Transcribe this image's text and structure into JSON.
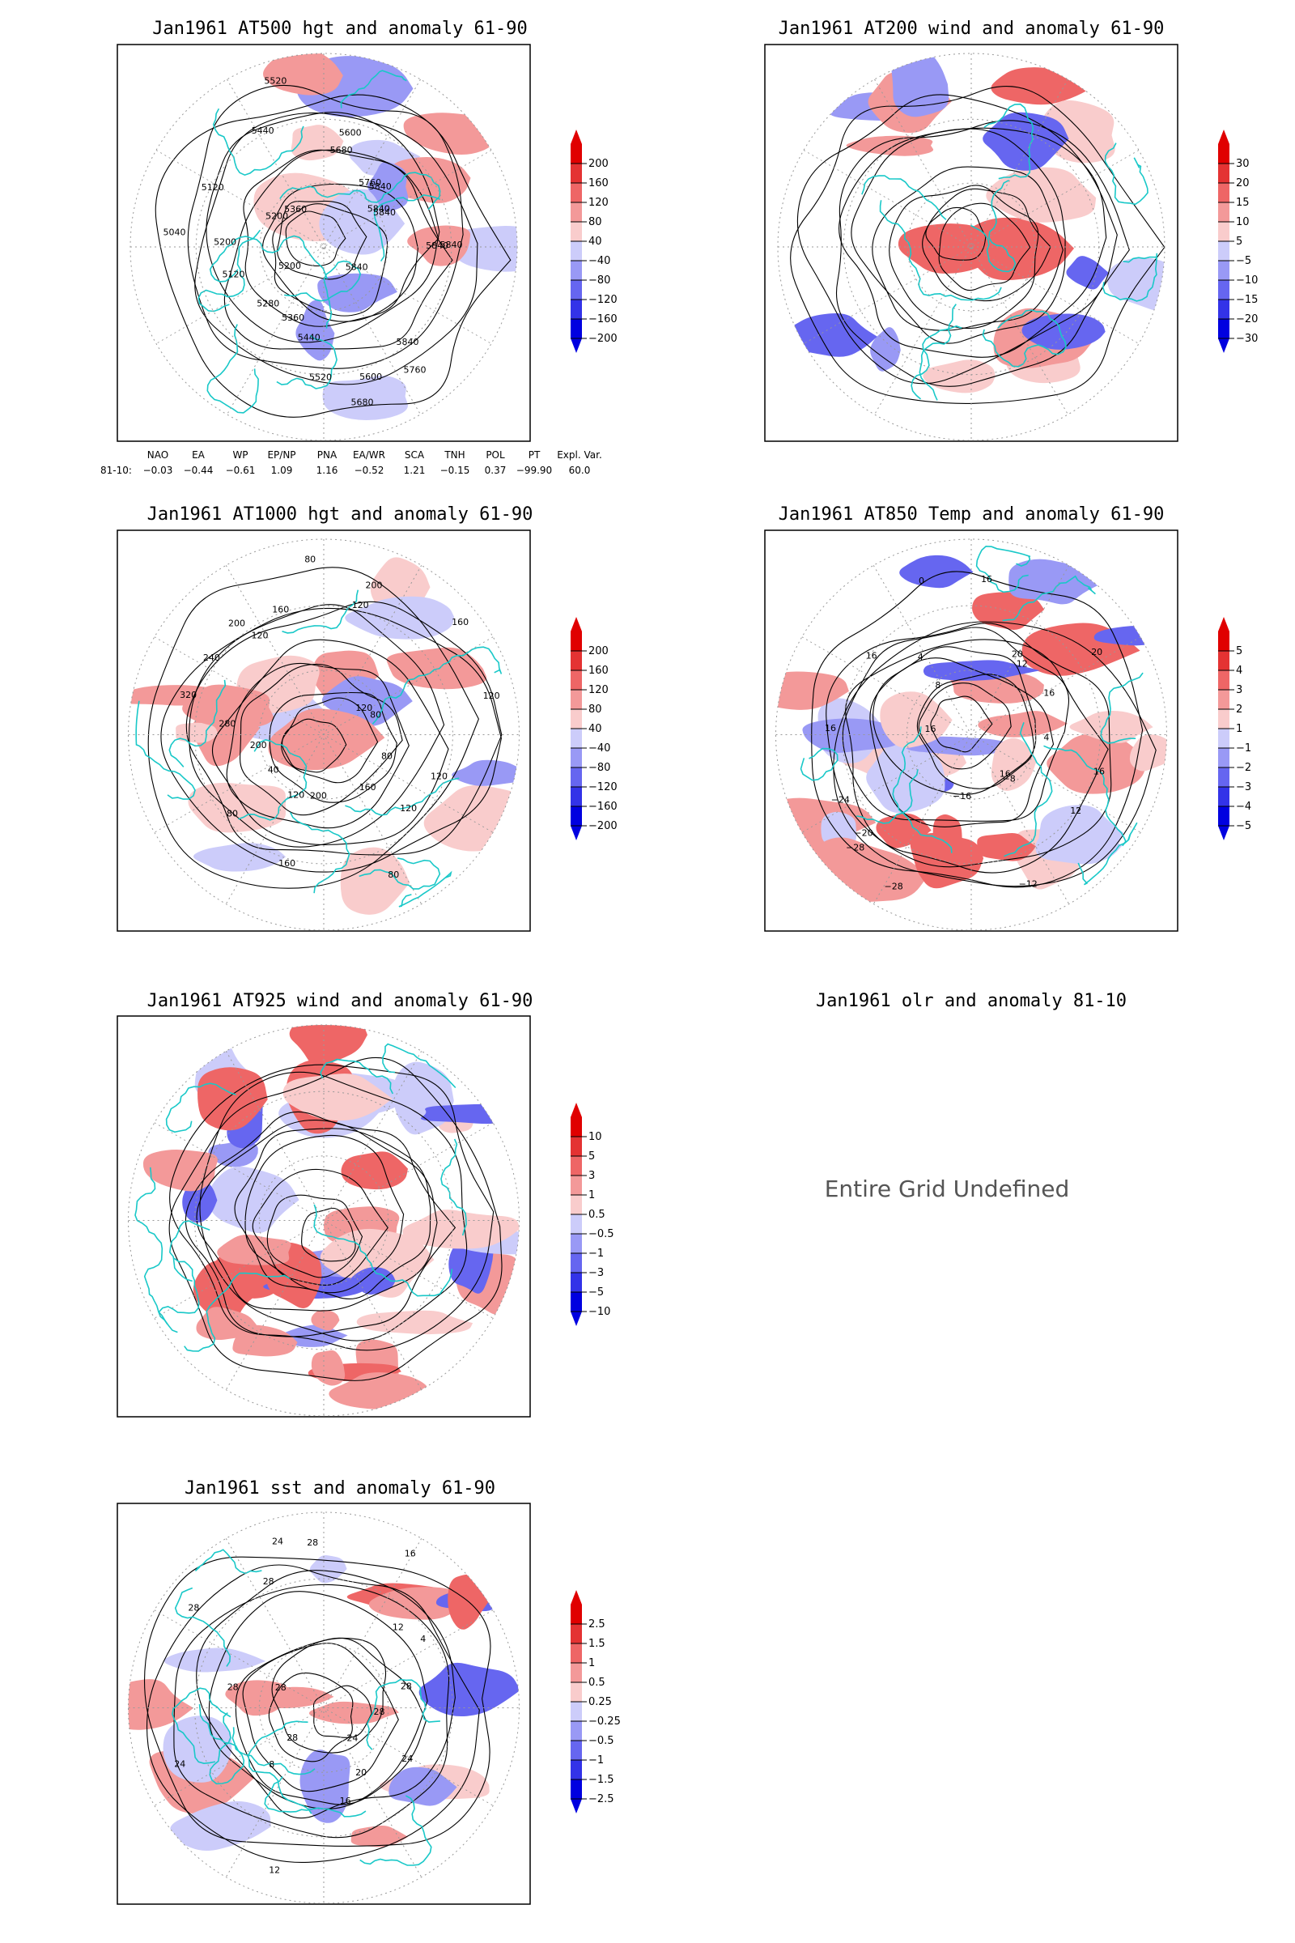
{
  "chart_data": [
    {
      "type": "heatmap",
      "title": "Jan1961 AT500 hgt and anomaly 61-90",
      "colorbar": {
        "levels": [
          200,
          160,
          120,
          80,
          40,
          -40,
          -80,
          -120,
          -160,
          -200
        ]
      },
      "contour_labels": [
        "5840",
        "5840",
        "5840",
        "5760",
        "5680",
        "5600",
        "5520",
        "5440",
        "5360",
        "5280",
        "5200",
        "5120",
        "5040",
        "5200",
        "5120",
        "5200",
        "5360",
        "5440",
        "5520",
        "5600",
        "5680",
        "5760",
        "5840",
        "5840",
        "5840",
        "5840"
      ],
      "indices": {
        "header": [
          "NAO",
          "EA",
          "WP",
          "EP/NP",
          "PNA",
          "EA/WR",
          "SCA",
          "TNH",
          "POL",
          "PT",
          "Expl. Var."
        ],
        "row_label": "81-10:",
        "values": [
          "-0.03",
          "-0.44",
          "-0.61",
          "1.09",
          "1.16",
          "-0.52",
          "1.21",
          "-0.15",
          "0.37",
          "-99.90",
          "60.0"
        ]
      }
    },
    {
      "type": "heatmap",
      "title": "Jan1961 AT200 wind and anomaly 61-90",
      "colorbar": {
        "levels": [
          30,
          20,
          15,
          10,
          5,
          -5,
          -10,
          -15,
          -20,
          -30
        ]
      }
    },
    {
      "type": "heatmap",
      "title": "Jan1961 AT1000 hgt and anomaly 61-90",
      "colorbar": {
        "levels": [
          200,
          160,
          120,
          80,
          40,
          -40,
          -80,
          -120,
          -160,
          -200
        ]
      },
      "contour_labels": [
        "80",
        "120",
        "120",
        "160",
        "80",
        "200",
        "160",
        "120",
        "80",
        "40",
        "200",
        "280",
        "320",
        "240",
        "200",
        "120",
        "160",
        "80",
        "120",
        "200",
        "160",
        "120",
        "80",
        "120"
      ]
    },
    {
      "type": "heatmap",
      "title": "Jan1961 AT850 Temp and anomaly 61-90",
      "colorbar": {
        "levels": [
          5,
          4,
          3,
          2,
          1,
          -1,
          -2,
          -3,
          -4,
          -5
        ]
      },
      "contour_labels": [
        "16",
        "12",
        "16",
        "-8",
        "-12",
        "-16",
        "-28",
        "-28",
        "-20",
        "-24",
        "16",
        "16",
        "16",
        "8",
        "4",
        "0",
        "16",
        "20",
        "12",
        "16",
        "20",
        "4"
      ]
    },
    {
      "type": "heatmap",
      "title": "Jan1961 AT925 wind and anomaly 61-90",
      "colorbar": {
        "levels": [
          10,
          5,
          3,
          1,
          0.5,
          -0.5,
          -1,
          -3,
          -5,
          -10
        ]
      }
    },
    {
      "type": "heatmap",
      "title": "Jan1961 olr and anomaly 81-10",
      "message": "Entire Grid Undefined"
    },
    {
      "type": "heatmap",
      "title": "Jan1961 sst and anomaly 61-90",
      "colorbar": {
        "levels": [
          2.5,
          1.5,
          1,
          0.5,
          0.25,
          -0.25,
          -0.5,
          -1,
          -1.5,
          -2.5
        ]
      },
      "contour_labels": [
        "28",
        "24",
        "24",
        "20",
        "16",
        "12",
        "8",
        "28",
        "24",
        "28",
        "28",
        "28",
        "28",
        "24",
        "28",
        "16",
        "12",
        "4",
        "28"
      ]
    }
  ],
  "colors": {
    "coast": "#19c8c8",
    "contour": "#000000",
    "pos": [
      "#ffffff",
      "#f9cccc",
      "#f39999",
      "#ee6666",
      "#e43333",
      "#e00000"
    ],
    "neg": [
      "#ffffff",
      "#ccccfa",
      "#9999f5",
      "#6666f0",
      "#3333e8",
      "#0000e0"
    ]
  }
}
